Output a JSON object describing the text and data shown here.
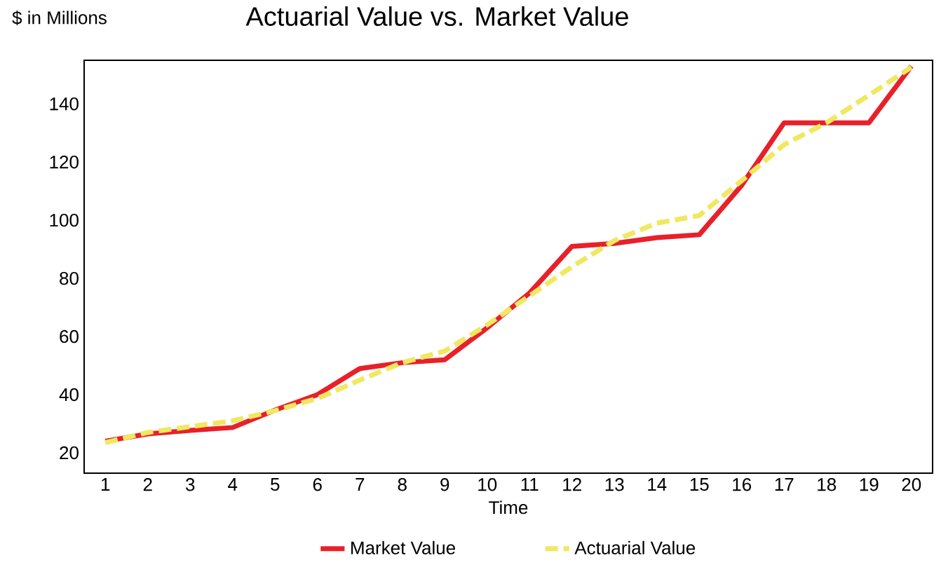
{
  "chart_data": {
    "type": "line",
    "title": "Actuarial Value vs. Market Value",
    "xlabel": "Time",
    "ylabel": "$ in Millions",
    "categories": [
      "1",
      "2",
      "3",
      "4",
      "5",
      "6",
      "7",
      "8",
      "9",
      "10",
      "11",
      "12",
      "13",
      "14",
      "15",
      "16",
      "17",
      "18",
      "19",
      "20"
    ],
    "series": [
      {
        "name": "Market Value",
        "color": "#e8202a",
        "line_style": "solid",
        "values": [
          24,
          26.5,
          27.7,
          28.7,
          34.7,
          40,
          49,
          51,
          52,
          63,
          75,
          91,
          92,
          94,
          95,
          112,
          133.5,
          133.5,
          133.5,
          153
        ]
      },
      {
        "name": "Actuarial Value",
        "color": "#f0e860",
        "line_style": "dashed",
        "values": [
          23.5,
          27,
          29,
          31,
          34.5,
          38.7,
          45,
          51,
          55,
          64,
          74,
          84,
          93,
          99,
          101.6,
          113.6,
          126,
          133.5,
          143,
          152.6
        ]
      }
    ],
    "ylim": [
      13,
      155
    ],
    "yticks": [
      20,
      40,
      60,
      80,
      100,
      120,
      140
    ],
    "grid": false,
    "legend": "bottom",
    "marker": "none"
  }
}
